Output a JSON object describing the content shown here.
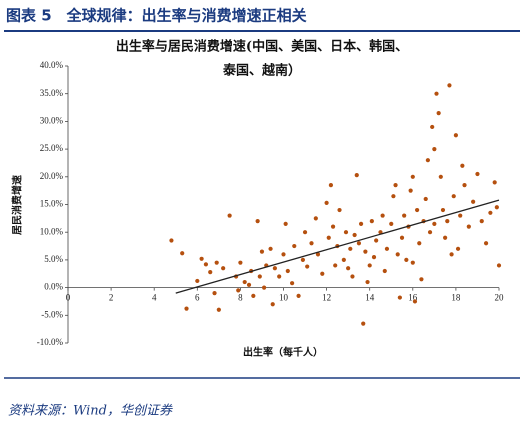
{
  "header": {
    "title": "图表 5　全球规律：出生率与消费增速正相关"
  },
  "chart_data": {
    "type": "scatter",
    "title_lines": [
      "出生率与居民消费增速(中国、美国、日本、韩国、",
      "泰国、越南）"
    ],
    "x_label": "出生率（每千人）",
    "y_label": "居民消费增速",
    "color": "#b5500f",
    "xlim": [
      0,
      20
    ],
    "xticks": [
      0,
      2,
      4,
      6,
      8,
      10,
      12,
      14,
      16,
      18,
      20
    ],
    "ylim": [
      -10,
      40
    ],
    "yticks": [
      {
        "value": -10,
        "label": "-10.0%"
      },
      {
        "value": -5,
        "label": "-5.0%"
      },
      {
        "value": 0,
        "label": "0.0%"
      },
      {
        "value": 5,
        "label": "5.0%"
      },
      {
        "value": 10,
        "label": "10.0%"
      },
      {
        "value": 15,
        "label": "15.0%"
      },
      {
        "value": 20,
        "label": "20.0%"
      },
      {
        "value": 25,
        "label": "25.0%"
      },
      {
        "value": 30,
        "label": "30.0%"
      },
      {
        "value": 35,
        "label": "35.0%"
      },
      {
        "value": 40,
        "label": "40.0%"
      }
    ],
    "trendline": {
      "x": [
        5,
        20
      ],
      "y": [
        -1,
        15.8
      ]
    },
    "x": [
      4.8,
      5.3,
      5.5,
      6.0,
      6.2,
      6.4,
      6.6,
      6.8,
      6.9,
      7.0,
      7.2,
      7.5,
      7.8,
      7.9,
      8.0,
      8.2,
      8.4,
      8.5,
      8.6,
      8.8,
      8.9,
      9.0,
      9.1,
      9.2,
      9.4,
      9.5,
      9.6,
      9.8,
      10.0,
      10.1,
      10.2,
      10.4,
      10.5,
      10.7,
      10.9,
      11.0,
      11.1,
      11.3,
      11.5,
      11.6,
      11.8,
      12.0,
      12.1,
      12.2,
      12.3,
      12.4,
      12.5,
      12.6,
      12.8,
      12.9,
      13.0,
      13.1,
      13.2,
      13.3,
      13.4,
      13.5,
      13.6,
      13.7,
      13.8,
      13.9,
      14.0,
      14.1,
      14.2,
      14.3,
      14.5,
      14.6,
      14.7,
      14.8,
      15.0,
      15.1,
      15.2,
      15.3,
      15.4,
      15.5,
      15.6,
      15.7,
      15.8,
      15.9,
      16.0,
      16.1,
      16.2,
      16.3,
      16.4,
      16.5,
      16.6,
      16.7,
      16.8,
      16.9,
      17.0,
      17.1,
      17.2,
      17.3,
      17.4,
      17.5,
      17.6,
      17.7,
      17.8,
      17.9,
      18.0,
      18.1,
      18.2,
      18.4,
      18.6,
      18.8,
      19.0,
      19.2,
      19.4,
      19.6,
      19.8,
      20.0,
      19.9,
      18.3,
      17.0,
      16.0
    ],
    "values": [
      8.5,
      6.2,
      -3.8,
      1.2,
      5.2,
      4.2,
      2.8,
      -1,
      4.5,
      -4,
      3.5,
      13,
      2,
      -0.5,
      4.5,
      1,
      0.5,
      3,
      -1.5,
      12,
      2,
      6.5,
      0,
      4,
      7,
      -3,
      3.5,
      2,
      6,
      11.5,
      3,
      0.8,
      7.5,
      -1.5,
      5,
      10,
      3.8,
      8,
      12.5,
      6,
      2.5,
      15.3,
      9,
      18.5,
      11,
      4,
      7.5,
      14,
      5,
      10,
      3.5,
      7,
      2,
      9.5,
      20.3,
      8,
      11.5,
      -6.5,
      6.5,
      1,
      4,
      12,
      5.5,
      8.5,
      10,
      13,
      3,
      7,
      11.5,
      16.5,
      18.5,
      6,
      -1.8,
      9,
      13,
      5,
      11,
      17.5,
      20,
      -2.5,
      14,
      8,
      1.5,
      12,
      16,
      23,
      10,
      29,
      25,
      35,
      31.5,
      20,
      14,
      9,
      12,
      36.5,
      6,
      16.5,
      27.5,
      7,
      13,
      18.5,
      11,
      15.5,
      20.5,
      12,
      8,
      13.5,
      19,
      4,
      14.5,
      22,
      11.5,
      4.5
    ]
  },
  "footer": {
    "source": "资料来源：Wind，华创证券"
  }
}
